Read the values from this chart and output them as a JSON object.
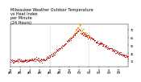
{
  "title_line1": "Milwaukee Weather Outdoor Temperature",
  "title_line2": "vs Heat Index",
  "title_line3": "per Minute",
  "title_line4": "(24 Hours)",
  "background_color": "#ffffff",
  "temp_color": "#cc0000",
  "heat_index_color": "#ff8800",
  "ylim": [
    28,
    82
  ],
  "title_fontsize": 3.5,
  "tick_fontsize": 2.5,
  "vline_positions": [
    480,
    960
  ],
  "vline_color": "#aaaaaa",
  "yticks": [
    35,
    45,
    55,
    65,
    75
  ],
  "dot_size": 0.4,
  "subsample_step": 4
}
